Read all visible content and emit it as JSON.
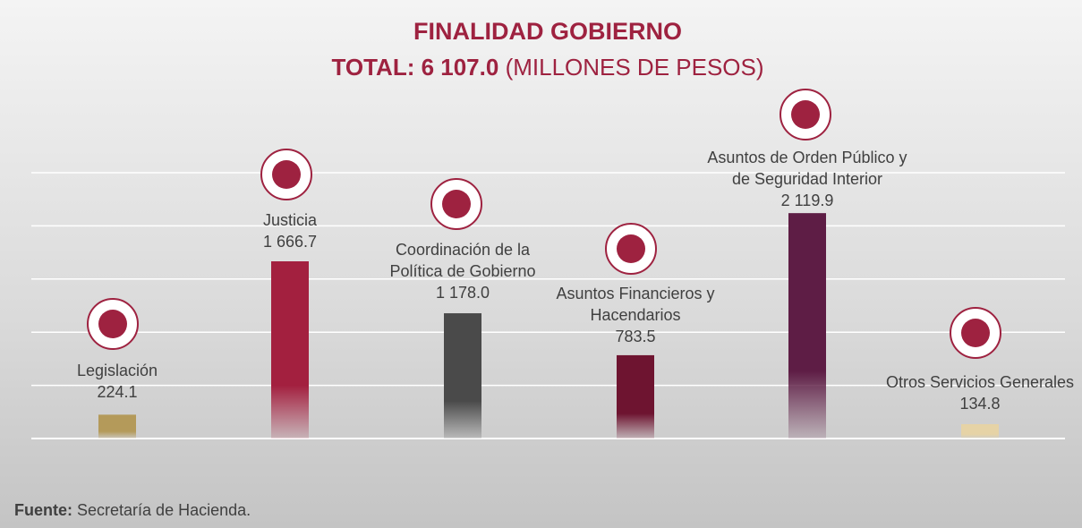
{
  "chart_data": {
    "type": "bar",
    "title": "FINALIDAD GOBIERNO",
    "subtitle": [
      "TOTAL: 6 107.0",
      "(MILLONES DE PESOS)"
    ],
    "categories": [
      "Legislación",
      "Justicia",
      "Coordinación de la Política de Gobierno",
      "Asuntos Financieros y Hacendarios",
      "Asuntos de Orden Público y de Seguridad Interior",
      "Otros Servicios Generales"
    ],
    "values": [
      224.1,
      1666.7,
      1178.0,
      783.5,
      2119.9,
      134.8
    ],
    "value_labels": [
      "224.1",
      "1 666.7",
      "1 178.0",
      "783.5",
      "2 119.9",
      "134.8"
    ],
    "colors": [
      "#b49a5a",
      "#a3203f",
      "#4a4a4a",
      "#6e1430",
      "#5e1d45",
      "#e6d3a6"
    ],
    "ylim": [
      0,
      2500
    ],
    "yticks": [
      0,
      500,
      1000,
      1500,
      2000,
      2500
    ],
    "grid": true,
    "source": {
      "label": "Fuente:",
      "text": "Secretaría de Hacienda."
    }
  }
}
